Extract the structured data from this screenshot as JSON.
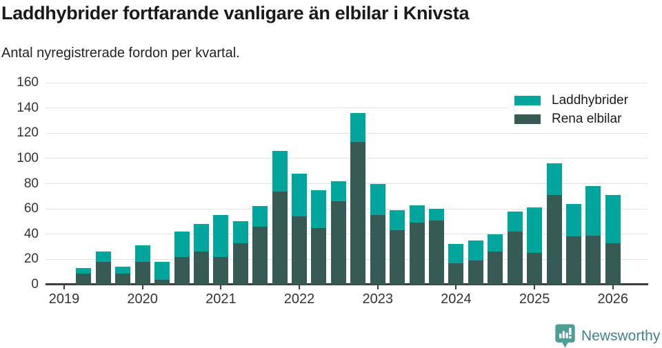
{
  "page": {
    "title": "Laddhybrider fortfarande vanligare än elbilar i Knivsta",
    "subtitle": "Antal nyregistrerade fordon per kvartal."
  },
  "legend": {
    "items": [
      {
        "label": "Laddhybrider",
        "color": "#00a59c"
      },
      {
        "label": "Rena elbilar",
        "color": "#365b54"
      }
    ]
  },
  "footer": {
    "brand": "Newsworthy",
    "brand_text_color": "#45808f",
    "brand_icon_color": "#4d9f96"
  },
  "colors": {
    "laddhybrider": "#00a59c",
    "rena_elbilar": "#365b54",
    "axis": "#3d3d3d",
    "gridline": "#e2e2e2",
    "tick_text": "#333333"
  },
  "chart_data": {
    "type": "bar",
    "stacked": true,
    "title": "Laddhybrider fortfarande vanligare än elbilar i Knivsta",
    "subtitle": "Antal nyregistrerade fordon per kvartal.",
    "x": [
      "2019Q1",
      "2019Q2",
      "2019Q3",
      "2019Q4",
      "2020Q1",
      "2020Q2",
      "2020Q3",
      "2020Q4",
      "2021Q1",
      "2021Q2",
      "2021Q3",
      "2021Q4",
      "2022Q1",
      "2022Q2",
      "2022Q3",
      "2022Q4",
      "2023Q1",
      "2023Q2",
      "2023Q3",
      "2023Q4",
      "2024Q1",
      "2024Q2",
      "2024Q3",
      "2024Q4",
      "2025Q1",
      "2025Q2",
      "2025Q3",
      "2025Q4",
      "2026Q1"
    ],
    "series": [
      {
        "name": "Rena elbilar",
        "color": "#365b54",
        "values": [
          0,
          9,
          18,
          9,
          18,
          4,
          22,
          26,
          22,
          33,
          46,
          74,
          54,
          45,
          66,
          113,
          55,
          43,
          49,
          51,
          17,
          19,
          26,
          42,
          25,
          71,
          38,
          39,
          33
        ]
      },
      {
        "name": "Laddhybrider",
        "color": "#00a59c",
        "values": [
          0,
          4,
          8,
          5,
          13,
          14,
          20,
          22,
          33,
          17,
          16,
          32,
          34,
          30,
          16,
          23,
          25,
          16,
          14,
          9,
          15,
          16,
          14,
          16,
          36,
          25,
          26,
          39,
          38
        ]
      }
    ],
    "totals": [
      0,
      13,
      26,
      14,
      31,
      18,
      42,
      48,
      55,
      50,
      62,
      106,
      88,
      75,
      82,
      136,
      80,
      59,
      63,
      60,
      32,
      35,
      40,
      58,
      61,
      96,
      64,
      78,
      71
    ],
    "ylim": [
      0,
      160
    ],
    "yticks": [
      0,
      20,
      40,
      60,
      80,
      100,
      120,
      140,
      160
    ],
    "xticks": [
      "2019",
      "2020",
      "2021",
      "2022",
      "2023",
      "2024",
      "2025",
      "2026"
    ],
    "grid": true,
    "legend_position": "top-right"
  }
}
